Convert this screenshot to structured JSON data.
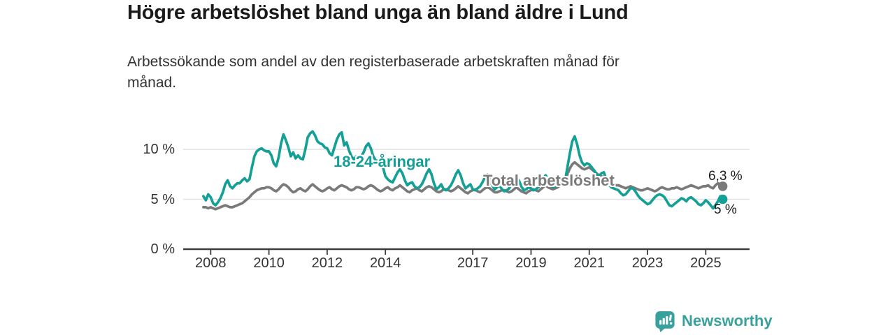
{
  "title": "Högre arbetslöshet bland unga än bland äldre i Lund",
  "subtitle": {
    "text": "Arbetssökande som andel av den registerbaserade arbetskraften månad för månad.",
    "lines": [
      "Arbetssökande som andel av den registerbaserade arbetskraften månad för",
      "månad."
    ]
  },
  "footer": {
    "brand": "Newsworthy"
  },
  "colors": {
    "teal": "#14a096",
    "gray": "#7a7a7a",
    "grid": "#e1e1e1",
    "axis": "#3d3d3d",
    "text": "#333333",
    "title_text": "#1a1a1a",
    "brand_teal": "#39a19c"
  },
  "chart_data": {
    "type": "line",
    "unit": "%",
    "start_month": "2007-10",
    "end_month": "2025-08",
    "grid": "horizontal",
    "ylim": [
      0,
      12.6
    ],
    "y_ticks": [
      {
        "value": 0,
        "label": "0 %"
      },
      {
        "value": 5,
        "label": "5 %"
      },
      {
        "value": 10,
        "label": "10 %"
      }
    ],
    "x_ticks": [
      {
        "year": 2008,
        "label": "2008"
      },
      {
        "year": 2010,
        "label": "2010"
      },
      {
        "year": 2012,
        "label": "2012"
      },
      {
        "year": 2014,
        "label": "2014"
      },
      {
        "year": 2017,
        "label": "2017"
      },
      {
        "year": 2019,
        "label": "2019"
      },
      {
        "year": 2021,
        "label": "2021"
      },
      {
        "year": 2023,
        "label": "2023"
      },
      {
        "year": 2025,
        "label": "2025"
      }
    ],
    "series": [
      {
        "name": "18-24-åringar",
        "color": "#14a096",
        "end_label": "5 %",
        "end_value": 5.0,
        "values": [
          5.3,
          4.9,
          5.5,
          5.2,
          4.6,
          4.4,
          4.7,
          5.1,
          5.7,
          6.5,
          6.9,
          6.3,
          6.1,
          6.4,
          6.6,
          6.6,
          6.9,
          7.1,
          6.8,
          7.0,
          8.2,
          9.3,
          9.8,
          10.0,
          10.1,
          9.9,
          9.8,
          9.8,
          9.4,
          8.6,
          8.3,
          9.2,
          10.6,
          11.5,
          10.9,
          10.2,
          9.3,
          9.7,
          9.1,
          9.4,
          9.1,
          9.0,
          10.0,
          11.2,
          11.6,
          11.8,
          11.4,
          10.8,
          10.6,
          10.5,
          10.2,
          10.1,
          9.6,
          9.4,
          10.2,
          11.0,
          11.5,
          11.7,
          10.4,
          10.7,
          9.9,
          9.3,
          9.0,
          9.3,
          9.0,
          9.3,
          9.7,
          10.3,
          10.6,
          10.1,
          9.3,
          8.9,
          8.8,
          8.8,
          8.2,
          7.3,
          7.0,
          6.8,
          6.7,
          7.2,
          7.7,
          8.0,
          7.6,
          6.9,
          6.4,
          6.6,
          6.7,
          6.3,
          6.1,
          6.2,
          6.5,
          7.0,
          7.6,
          8.0,
          7.5,
          6.6,
          6.0,
          6.2,
          6.5,
          6.0,
          5.9,
          6.1,
          6.4,
          6.9,
          7.5,
          7.9,
          7.4,
          6.6,
          6.1,
          6.3,
          6.5,
          6.0,
          5.9,
          6.1,
          6.3,
          6.7,
          7.2,
          7.5,
          7.1,
          6.4,
          6.0,
          6.2,
          6.4,
          6.0,
          5.8,
          5.9,
          6.1,
          6.5,
          7.0,
          7.3,
          6.9,
          6.3,
          5.9,
          6.0,
          6.2,
          6.1,
          5.9,
          6.0,
          6.2,
          6.6,
          7.1,
          7.4,
          7.0,
          6.5,
          6.2,
          6.3,
          6.5,
          6.5,
          6.4,
          6.8,
          8.2,
          9.6,
          10.8,
          11.3,
          10.5,
          9.4,
          8.7,
          8.4,
          8.6,
          8.5,
          8.2,
          7.9,
          7.5,
          7.3,
          7.6,
          7.7,
          7.0,
          6.5,
          6.2,
          6.1,
          6.0,
          5.9,
          5.6,
          5.4,
          5.5,
          5.8,
          6.1,
          6.1,
          5.8,
          5.4,
          5.1,
          4.9,
          4.7,
          4.5,
          4.6,
          4.9,
          5.2,
          5.4,
          5.5,
          5.4,
          5.2,
          4.8,
          4.4,
          4.3,
          4.5,
          4.7,
          4.9,
          5.1,
          5.0,
          4.8,
          5.1,
          5.2,
          5.0,
          4.8,
          4.5,
          4.4,
          4.6,
          4.9,
          4.7,
          4.4,
          4.1,
          4.4,
          4.8,
          5.3,
          5.0
        ]
      },
      {
        "name": "Total arbetslöshet",
        "color": "#7a7a7a",
        "end_label": "6,3 %",
        "end_value": 6.3,
        "values": [
          4.2,
          4.2,
          4.1,
          4.2,
          4.1,
          4.0,
          4.1,
          4.2,
          4.3,
          4.4,
          4.3,
          4.2,
          4.2,
          4.3,
          4.4,
          4.5,
          4.6,
          4.8,
          5.0,
          5.2,
          5.5,
          5.7,
          5.9,
          6.0,
          6.1,
          6.1,
          6.2,
          6.2,
          6.1,
          5.9,
          5.8,
          6.0,
          6.3,
          6.5,
          6.4,
          6.2,
          5.9,
          5.7,
          5.8,
          6.0,
          6.1,
          5.9,
          5.8,
          6.0,
          6.3,
          6.5,
          6.3,
          6.1,
          5.9,
          5.8,
          5.9,
          6.1,
          6.2,
          6.0,
          5.9,
          6.1,
          6.3,
          6.4,
          6.3,
          6.2,
          6.0,
          5.9,
          6.0,
          6.2,
          6.2,
          6.1,
          6.0,
          6.1,
          6.3,
          6.4,
          6.3,
          6.1,
          5.9,
          5.8,
          5.9,
          6.1,
          6.2,
          6.0,
          5.9,
          6.1,
          6.2,
          6.4,
          6.2,
          6.0,
          5.8,
          5.7,
          5.9,
          6.0,
          6.1,
          5.9,
          5.8,
          6.0,
          6.2,
          6.3,
          6.2,
          6.0,
          5.8,
          5.7,
          5.8,
          6.0,
          6.0,
          5.9,
          5.8,
          5.9,
          6.1,
          6.3,
          6.1,
          5.9,
          5.7,
          5.6,
          5.8,
          5.9,
          6.0,
          5.8,
          5.7,
          5.9,
          6.1,
          6.2,
          6.1,
          5.9,
          5.7,
          5.7,
          5.8,
          5.9,
          5.9,
          5.8,
          5.7,
          5.8,
          6.0,
          6.2,
          6.0,
          5.8,
          5.7,
          5.6,
          5.8,
          5.9,
          6.0,
          5.9,
          5.8,
          6.0,
          6.2,
          6.4,
          6.2,
          6.1,
          6.0,
          6.1,
          6.2,
          6.4,
          6.4,
          6.7,
          7.5,
          8.1,
          8.5,
          8.7,
          8.5,
          8.3,
          8.1,
          8.0,
          8.1,
          8.2,
          8.0,
          7.8,
          7.6,
          7.4,
          7.3,
          7.2,
          7.0,
          6.8,
          6.6,
          6.5,
          6.4,
          6.4,
          6.3,
          6.2,
          6.1,
          6.2,
          6.3,
          6.2,
          6.1,
          6.0,
          5.9,
          5.9,
          6.0,
          6.1,
          6.0,
          5.9,
          5.8,
          5.9,
          6.1,
          6.2,
          6.1,
          6.0,
          6.0,
          6.1,
          6.1,
          6.2,
          6.1,
          6.0,
          6.1,
          6.2,
          6.3,
          6.4,
          6.3,
          6.2,
          6.1,
          6.2,
          6.3,
          6.3,
          6.4,
          6.2,
          6.1,
          6.4,
          6.6,
          6.5,
          6.3
        ]
      }
    ]
  }
}
